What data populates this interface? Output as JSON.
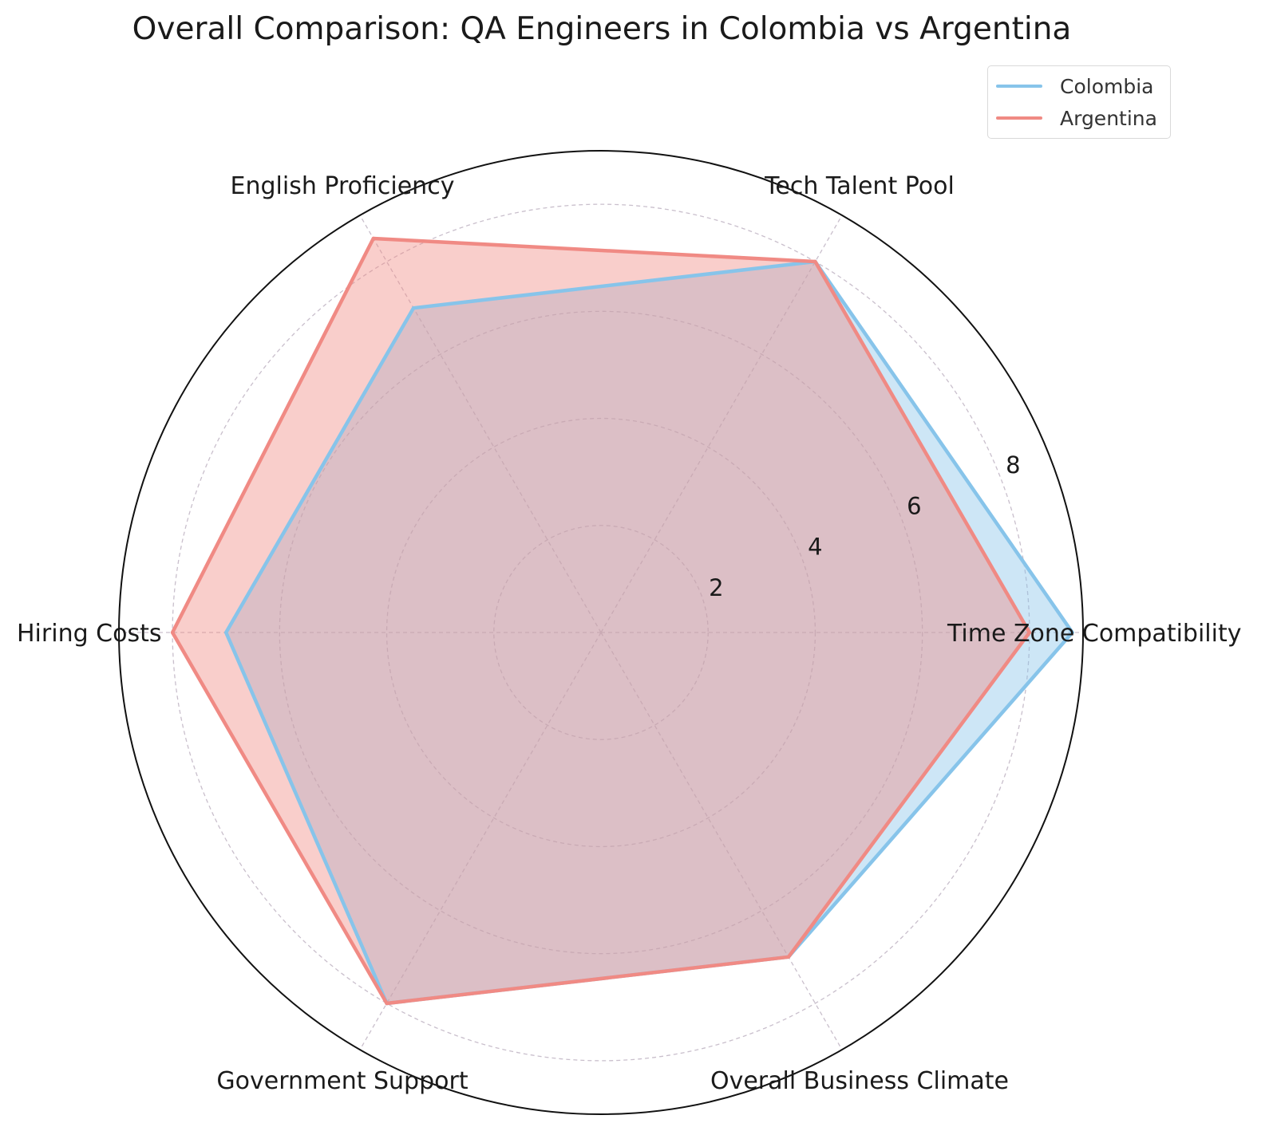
{
  "chart_data": {
    "type": "radar",
    "title": "Overall Comparison: QA Engineers in Colombia vs Argentina",
    "categories": [
      "Time Zone Compatibility",
      "Tech Talent Pool",
      "English Proficiency",
      "Hiring Costs",
      "Government Support",
      "Overall Business Climate"
    ],
    "series": [
      {
        "name": "Colombia",
        "values": [
          8.8,
          8,
          7,
          7,
          8,
          7
        ],
        "color": "#87c4ea"
      },
      {
        "name": "Argentina",
        "values": [
          8,
          8,
          8.5,
          8,
          8,
          7
        ],
        "color": "#f08a84"
      }
    ],
    "rticks": [
      2,
      4,
      6,
      8
    ],
    "rlim": [
      0,
      9
    ],
    "grid": true,
    "legend": "top-right"
  }
}
